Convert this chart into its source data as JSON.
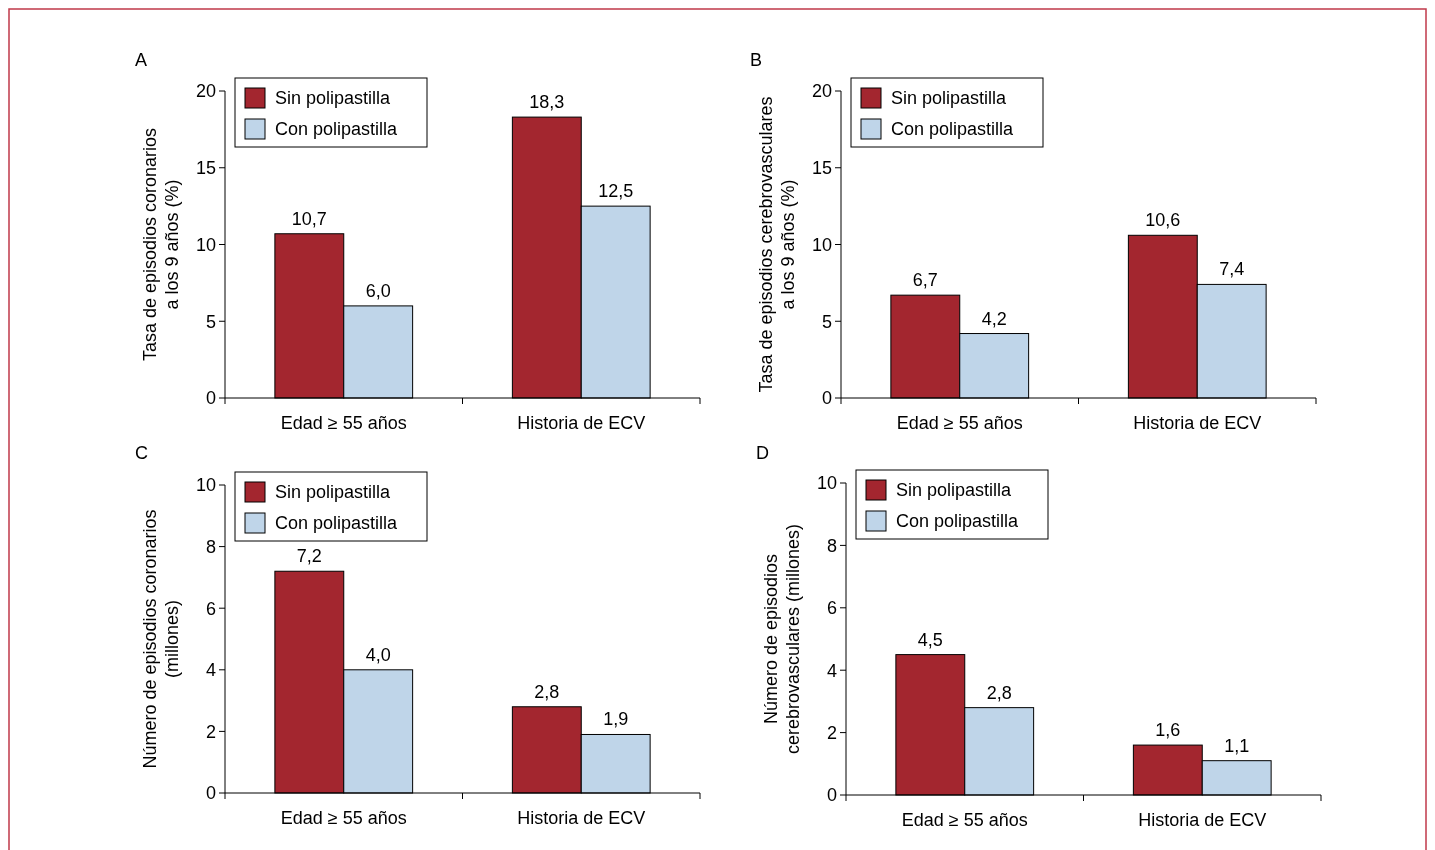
{
  "chart_data": [
    {
      "type": "bar",
      "title": "A",
      "ylabel": "Tasa de episodios coronarios\na los 9 años (%)",
      "categories": [
        "Edad ≥ 55 años",
        "Historia de ECV"
      ],
      "series": [
        {
          "name": "Sin polipastilla",
          "color": "#a3262f",
          "values": [
            10.7,
            18.3
          ],
          "value_labels": [
            "10,7",
            "18,3"
          ]
        },
        {
          "name": "Con polipastilla",
          "color": "#bfd5e9",
          "values": [
            6.0,
            12.5
          ],
          "value_labels": [
            "6,0",
            "12,5"
          ]
        }
      ],
      "ylim": [
        0,
        20
      ],
      "yticks": [
        0,
        5,
        10,
        15,
        20
      ],
      "legend": "top left"
    },
    {
      "type": "bar",
      "title": "B",
      "ylabel": "Tasa de episodios cerebrovasculares\na los 9 años (%)",
      "categories": [
        "Edad ≥ 55 años",
        "Historia de ECV"
      ],
      "series": [
        {
          "name": "Sin polipastilla",
          "color": "#a3262f",
          "values": [
            6.7,
            10.6
          ],
          "value_labels": [
            "6,7",
            "10,6"
          ]
        },
        {
          "name": "Con polipastilla",
          "color": "#bfd5e9",
          "values": [
            4.2,
            7.4
          ],
          "value_labels": [
            "4,2",
            "7,4"
          ]
        }
      ],
      "ylim": [
        0,
        20
      ],
      "yticks": [
        0,
        5,
        10,
        15,
        20
      ],
      "legend": "top left"
    },
    {
      "type": "bar",
      "title": "C",
      "ylabel": "Número de episodios coronarios\n(millones)",
      "categories": [
        "Edad ≥ 55 años",
        "Historia de ECV"
      ],
      "series": [
        {
          "name": "Sin polipastilla",
          "color": "#a3262f",
          "values": [
            7.2,
            2.8
          ],
          "value_labels": [
            "7,2",
            "2,8"
          ]
        },
        {
          "name": "Con polipastilla",
          "color": "#bfd5e9",
          "values": [
            4.0,
            1.9
          ],
          "value_labels": [
            "4,0",
            "1,9"
          ]
        }
      ],
      "ylim": [
        0,
        10
      ],
      "yticks": [
        0,
        2,
        4,
        6,
        8,
        10
      ],
      "legend": "top left"
    },
    {
      "type": "bar",
      "title": "D",
      "ylabel": "Número de episodios\ncerebrovasculares (millones)",
      "categories": [
        "Edad ≥ 55 años",
        "Historia de ECV"
      ],
      "series": [
        {
          "name": "Sin polipastilla",
          "color": "#a3262f",
          "values": [
            4.5,
            1.6
          ],
          "value_labels": [
            "4,5",
            "1,6"
          ]
        },
        {
          "name": "Con polipastilla",
          "color": "#bfd5e9",
          "values": [
            2.8,
            1.1
          ],
          "value_labels": [
            "2,8",
            "1,1"
          ]
        }
      ],
      "ylim": [
        0,
        10
      ],
      "yticks": [
        0,
        2,
        4,
        6,
        8,
        10
      ],
      "legend": "top left"
    }
  ]
}
